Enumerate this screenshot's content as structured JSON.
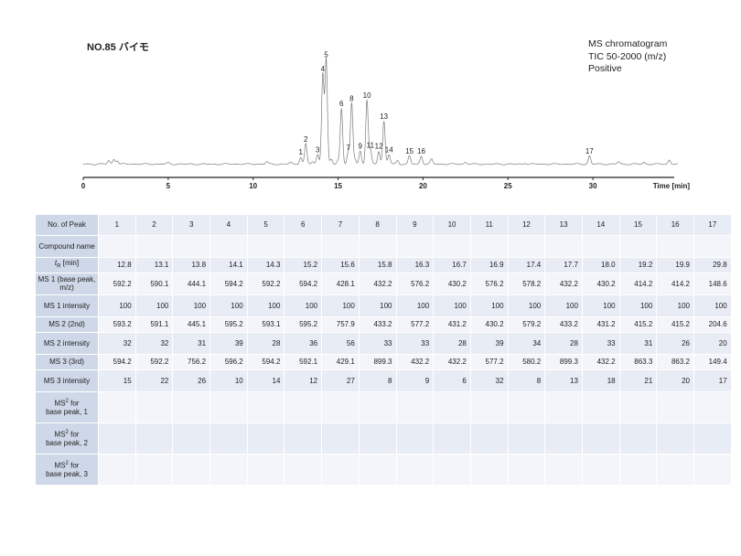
{
  "title": "NO.85 バイモ",
  "info": [
    "MS chromatogram",
    "TIC 50-2000 (m/z)",
    "Positive"
  ],
  "chart_data": {
    "type": "line",
    "xlabel": "Time [min]",
    "xlim": [
      0,
      35
    ],
    "xticks": [
      "0",
      "5",
      "10",
      "15",
      "20",
      "25",
      "30"
    ],
    "peaks": [
      {
        "label": "1",
        "x": 12.8,
        "y": 6
      },
      {
        "label": "2",
        "x": 13.1,
        "y": 17
      },
      {
        "label": "3",
        "x": 13.8,
        "y": 8
      },
      {
        "label": "4",
        "x": 14.1,
        "y": 76
      },
      {
        "label": "5",
        "x": 14.3,
        "y": 88
      },
      {
        "label": "6",
        "x": 15.2,
        "y": 47
      },
      {
        "label": "7",
        "x": 15.6,
        "y": 10
      },
      {
        "label": "8",
        "x": 15.8,
        "y": 51
      },
      {
        "label": "9",
        "x": 16.3,
        "y": 11
      },
      {
        "label": "10",
        "x": 16.7,
        "y": 54
      },
      {
        "label": "11",
        "x": 16.9,
        "y": 12
      },
      {
        "label": "12",
        "x": 17.4,
        "y": 11
      },
      {
        "label": "13",
        "x": 17.7,
        "y": 36
      },
      {
        "label": "14",
        "x": 18.0,
        "y": 8
      },
      {
        "label": "15",
        "x": 19.2,
        "y": 7
      },
      {
        "label": "16",
        "x": 19.9,
        "y": 7
      },
      {
        "label": "17",
        "x": 29.8,
        "y": 7
      }
    ]
  },
  "table": {
    "rows": [
      {
        "header": "No. of Peak",
        "values": [
          "1",
          "2",
          "3",
          "4",
          "5",
          "6",
          "7",
          "8",
          "9",
          "10",
          "11",
          "12",
          "13",
          "14",
          "15",
          "16",
          "17"
        ]
      },
      {
        "header": "Compound name",
        "values": [
          "",
          "",
          "",
          "",
          "",
          "",
          "",
          "",
          "",
          "",
          "",
          "",
          "",
          "",
          "",
          "",
          ""
        ]
      },
      {
        "header": "tR [min]",
        "values": [
          "12.8",
          "13.1",
          "13.8",
          "14.1",
          "14.3",
          "15.2",
          "15.6",
          "15.8",
          "16.3",
          "16.7",
          "16.9",
          "17.4",
          "17.7",
          "18.0",
          "19.2",
          "19.9",
          "29.8"
        ]
      },
      {
        "header": "MS 1 (base peak, m/z)",
        "values": [
          "592.2",
          "590.1",
          "444.1",
          "594.2",
          "592.2",
          "594.2",
          "428.1",
          "432.2",
          "576.2",
          "430.2",
          "576.2",
          "578.2",
          "432.2",
          "430.2",
          "414.2",
          "414.2",
          "148.6"
        ]
      },
      {
        "header": "MS 1 intensity",
        "values": [
          "100",
          "100",
          "100",
          "100",
          "100",
          "100",
          "100",
          "100",
          "100",
          "100",
          "100",
          "100",
          "100",
          "100",
          "100",
          "100",
          "100"
        ]
      },
      {
        "header": "MS 2 (2nd)",
        "values": [
          "593.2",
          "591.1",
          "445.1",
          "595.2",
          "593.1",
          "595.2",
          "757.9",
          "433.2",
          "577.2",
          "431.2",
          "430.2",
          "579.2",
          "433.2",
          "431.2",
          "415.2",
          "415.2",
          "204.6"
        ]
      },
      {
        "header": "MS 2 intensity",
        "values": [
          "32",
          "32",
          "31",
          "39",
          "28",
          "36",
          "56",
          "33",
          "33",
          "28",
          "39",
          "34",
          "28",
          "33",
          "31",
          "26",
          "20"
        ]
      },
      {
        "header": "MS 3 (3rd)",
        "values": [
          "594.2",
          "592.2",
          "756.2",
          "596.2",
          "594.2",
          "592.1",
          "429.1",
          "899.3",
          "432.2",
          "432.2",
          "577.2",
          "580.2",
          "899.3",
          "432.2",
          "863.3",
          "863.2",
          "149.4"
        ]
      },
      {
        "header": "MS 3 intensity",
        "values": [
          "15",
          "22",
          "26",
          "10",
          "14",
          "12",
          "27",
          "8",
          "9",
          "6",
          "32",
          "8",
          "13",
          "18",
          "21",
          "20",
          "17"
        ]
      },
      {
        "header": "MS² for base peak, 1",
        "values": [
          "",
          "",
          "",
          "",
          "",
          "",
          "",
          "",
          "",
          "",
          "",
          "",
          "",
          "",
          "",
          "",
          ""
        ]
      },
      {
        "header": "MS² for base peak, 2",
        "values": [
          "",
          "",
          "",
          "",
          "",
          "",
          "",
          "",
          "",
          "",
          "",
          "",
          "",
          "",
          "",
          "",
          ""
        ]
      },
      {
        "header": "MS² for base peak, 3",
        "values": [
          "",
          "",
          "",
          "",
          "",
          "",
          "",
          "",
          "",
          "",
          "",
          "",
          "",
          "",
          "",
          "",
          ""
        ]
      }
    ]
  }
}
